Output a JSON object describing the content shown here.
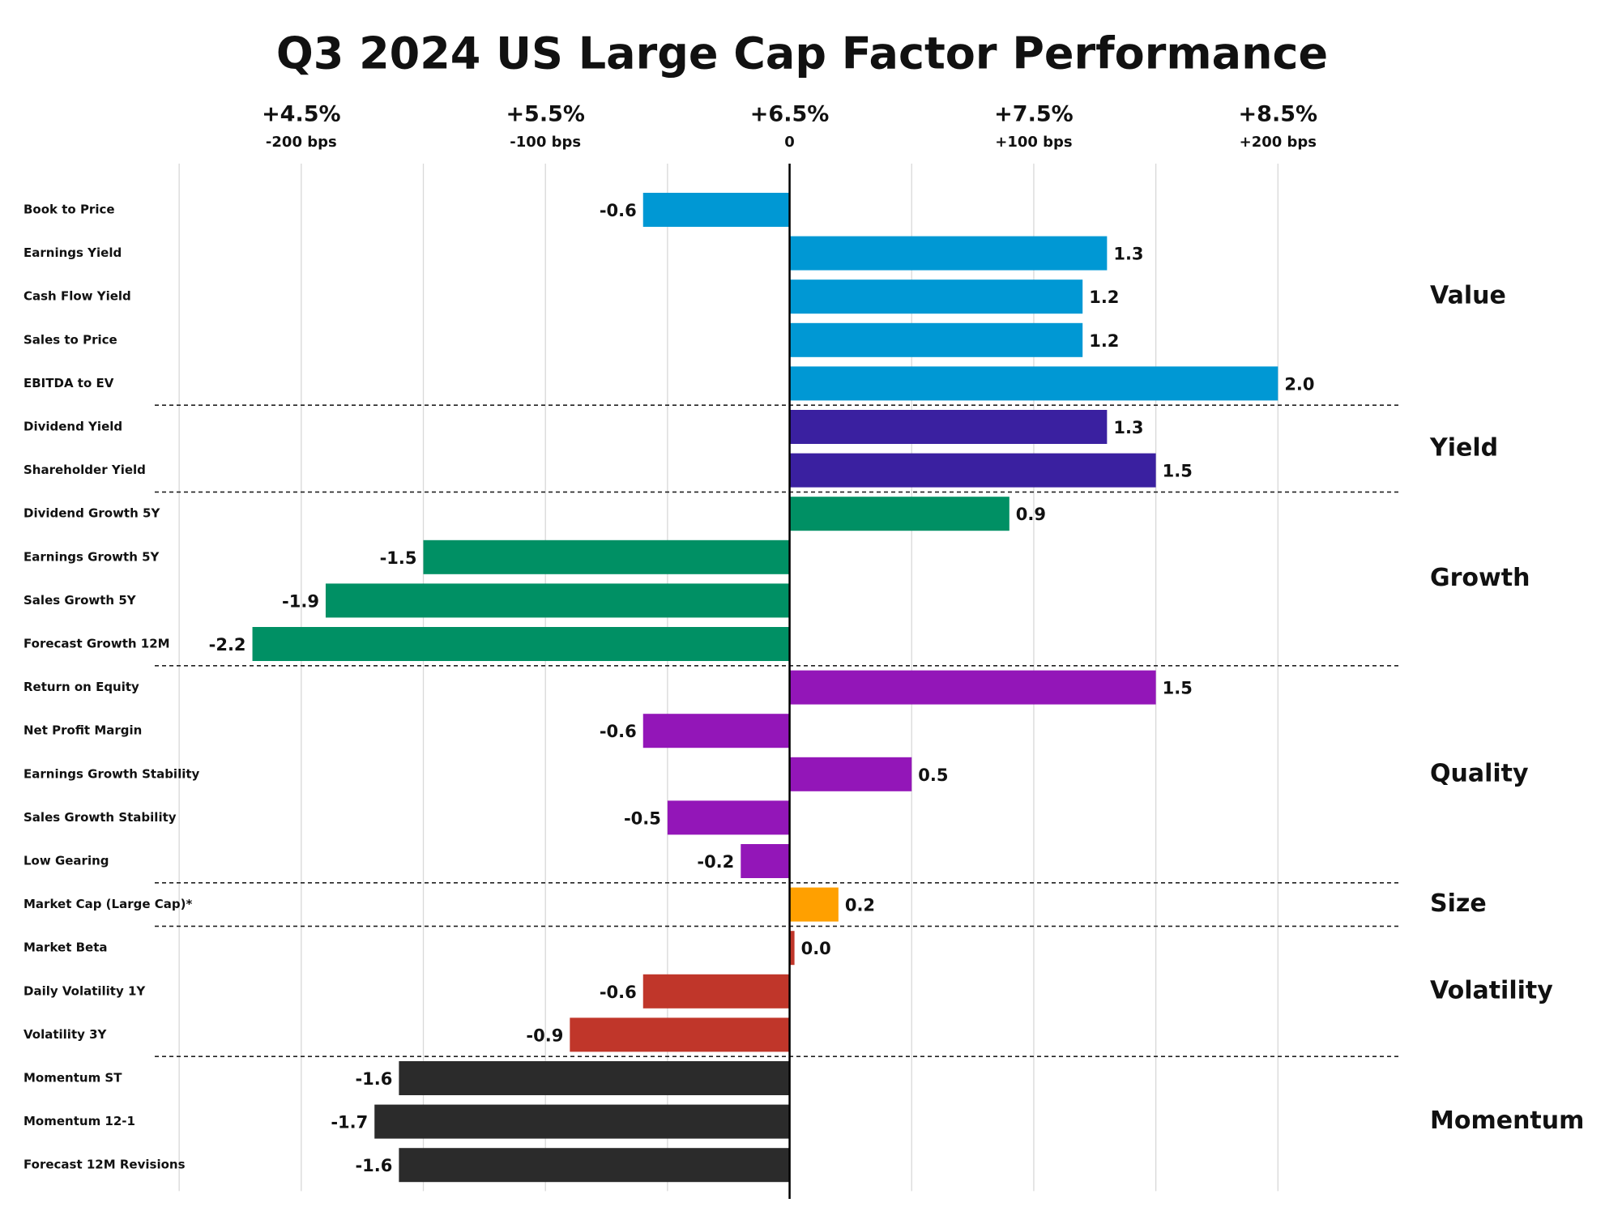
{
  "chart_data": {
    "type": "bar",
    "orientation": "horizontal",
    "title": "Q3 2024 US Large Cap Factor Performance",
    "xlim": [
      -2.6,
      2.5
    ],
    "xticks": [
      {
        "value": -2,
        "label": "+4.5%"
      },
      {
        "value": -1,
        "label": "+5.5%"
      },
      {
        "value": 0,
        "label": "+6.5%"
      },
      {
        "value": 1,
        "label": "+7.5%"
      },
      {
        "value": 2,
        "label": "+8.5%"
      }
    ],
    "xticks_secondary": [
      {
        "value": -2,
        "label": "-200 bps"
      },
      {
        "value": -1,
        "label": "-100 bps"
      },
      0,
      {
        "value": 1,
        "label": "+100 bps"
      },
      {
        "value": 2,
        "label": "+200 bps"
      }
    ],
    "xgrid": [
      -2.5,
      -2,
      -1.5,
      -1,
      -0.5,
      0.5,
      1,
      1.5,
      2
    ],
    "grid": true,
    "series": [
      {
        "name": "Value",
        "color": "#0098d4",
        "categories": [
          "Book to Price",
          "Earnings Yield",
          "Cash Flow Yield",
          "Sales to Price",
          "EBITDA to EV"
        ],
        "values": [
          -0.6,
          1.3,
          1.2,
          1.2,
          2.0
        ],
        "value_labels": [
          "-0.6",
          "1.3",
          "1.2",
          "1.2",
          "2.0"
        ]
      },
      {
        "name": "Yield",
        "color": "#3a20a0",
        "categories": [
          "Dividend Yield",
          "Shareholder Yield"
        ],
        "values": [
          1.3,
          1.5
        ],
        "value_labels": [
          "1.3",
          "1.5"
        ]
      },
      {
        "name": "Growth",
        "color": "#009064",
        "categories": [
          "Dividend Growth 5Y",
          "Earnings Growth 5Y",
          "Sales Growth 5Y",
          "Forecast Growth 12M"
        ],
        "values": [
          0.9,
          -1.5,
          -1.9,
          -2.2
        ],
        "value_labels": [
          "0.9",
          "-1.5",
          "-1.9",
          "-2.2"
        ]
      },
      {
        "name": "Quality",
        "color": "#9316b8",
        "categories": [
          "Return on Equity",
          "Net Profit Margin",
          "Earnings Growth Stability",
          "Sales Growth Stability",
          "Low Gearing"
        ],
        "values": [
          1.5,
          -0.6,
          0.5,
          -0.5,
          -0.2
        ],
        "value_labels": [
          "1.5",
          "-0.6",
          "0.5",
          "-0.5",
          "-0.2"
        ]
      },
      {
        "name": "Size",
        "color": "#ffa000",
        "categories": [
          "Market Cap (Large Cap)*"
        ],
        "values": [
          0.2
        ],
        "value_labels": [
          "0.2"
        ]
      },
      {
        "name": "Volatility",
        "color": "#c0362a",
        "categories": [
          "Market Beta",
          "Daily Volatility 1Y",
          "Volatility 3Y"
        ],
        "values": [
          0.02,
          -0.6,
          -0.9
        ],
        "value_labels": [
          "0.0",
          "-0.6",
          "-0.9"
        ]
      },
      {
        "name": "Momentum",
        "color": "#2b2b2b",
        "categories": [
          "Momentum ST",
          "Momentum 12-1",
          "Forecast 12M Revisions"
        ],
        "values": [
          -1.6,
          -1.7,
          -1.6
        ],
        "value_labels": [
          "-1.6",
          "-1.7",
          "-1.6"
        ]
      }
    ]
  }
}
